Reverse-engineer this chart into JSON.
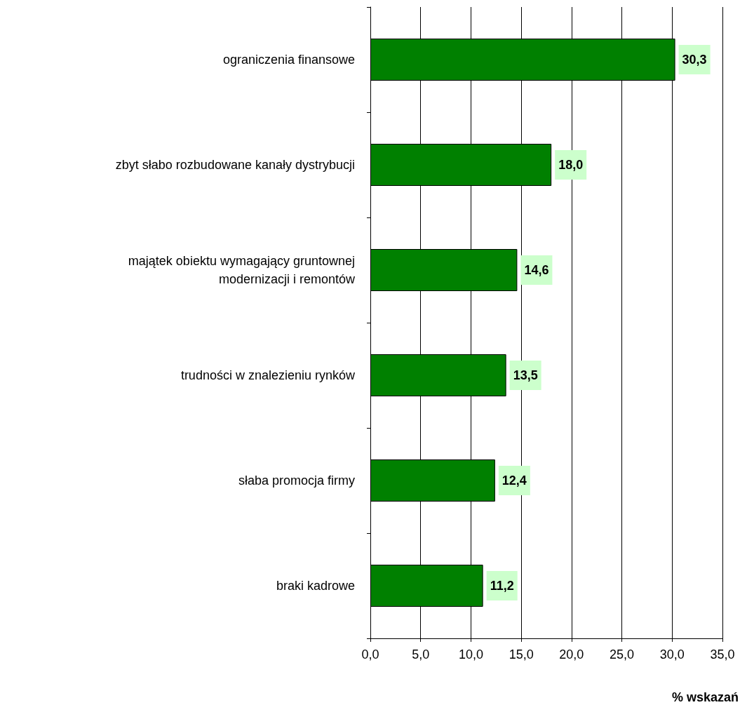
{
  "chart_data": {
    "type": "bar",
    "orientation": "horizontal",
    "xlabel": "% wskazań",
    "categories": [
      "ograniczenia finansowe",
      "zbyt słabo rozbudowane kanały dystrybucji",
      "majątek obiektu wymagający gruntownej\nmodernizacji i remontów",
      "trudności w znalezieniu rynków",
      "słaba promocja firmy",
      "braki kadrowe"
    ],
    "values": [
      30.3,
      18.0,
      14.6,
      13.5,
      12.4,
      11.2
    ],
    "value_labels": [
      "30,3",
      "18,0",
      "14,6",
      "13,5",
      "12,4",
      "11,2"
    ],
    "color": "#008000",
    "xlim": [
      0,
      35
    ],
    "xticks": [
      {
        "value": 0,
        "label": "0,0"
      },
      {
        "value": 5,
        "label": "5,0"
      },
      {
        "value": 10,
        "label": "10,0"
      },
      {
        "value": 15,
        "label": "15,0"
      },
      {
        "value": 20,
        "label": "20,0"
      },
      {
        "value": 25,
        "label": "25,0"
      },
      {
        "value": 30,
        "label": "30,0"
      },
      {
        "value": 35,
        "label": "35,0"
      }
    ],
    "grid": "x"
  }
}
